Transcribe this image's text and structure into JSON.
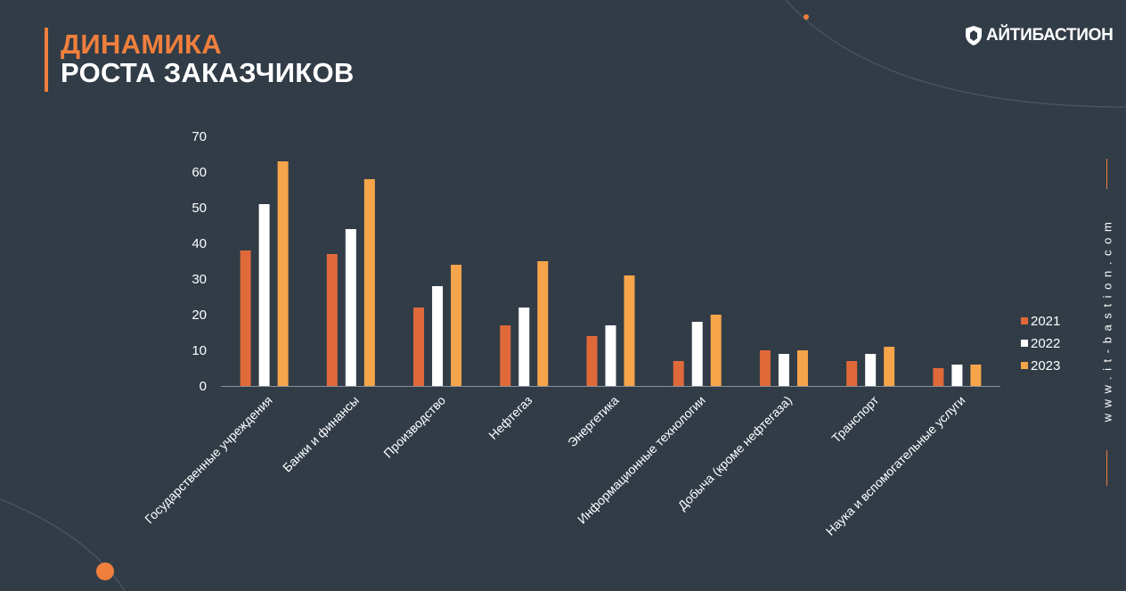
{
  "header": {
    "title_line1": "ДИНАМИКА",
    "title_line2": "РОСТА ЗАКАЗЧИКОВ",
    "logo_text": "АЙТИБАСТИОН",
    "website": "www.it-bastion.com"
  },
  "colors": {
    "background": "#313c47",
    "accent": "#f07f3c",
    "series_2021": "#e0693a",
    "series_2022": "#ffffff",
    "series_2023": "#f7a54a"
  },
  "chart_data": {
    "type": "bar",
    "categories": [
      "Государственные учреждения",
      "Банки и финансы",
      "Производство",
      "Нефтегаз",
      "Энергетика",
      "Информационные технологии",
      "Добыча (кроме нефтегаза)",
      "Транспорт",
      "Наука и вспомогательные услуги"
    ],
    "series": [
      {
        "name": "2021",
        "color": "#e0693a",
        "values": [
          38,
          37,
          22,
          17,
          14,
          7,
          10,
          7,
          5
        ]
      },
      {
        "name": "2022",
        "color": "#ffffff",
        "values": [
          51,
          44,
          28,
          22,
          17,
          18,
          9,
          9,
          6
        ]
      },
      {
        "name": "2023",
        "color": "#f7a54a",
        "values": [
          63,
          58,
          34,
          35,
          31,
          20,
          10,
          11,
          6
        ]
      }
    ],
    "ylim": [
      0,
      70
    ],
    "yticks": [
      0,
      10,
      20,
      30,
      40,
      50,
      60,
      70
    ],
    "grid": false,
    "legend_position": "right"
  }
}
